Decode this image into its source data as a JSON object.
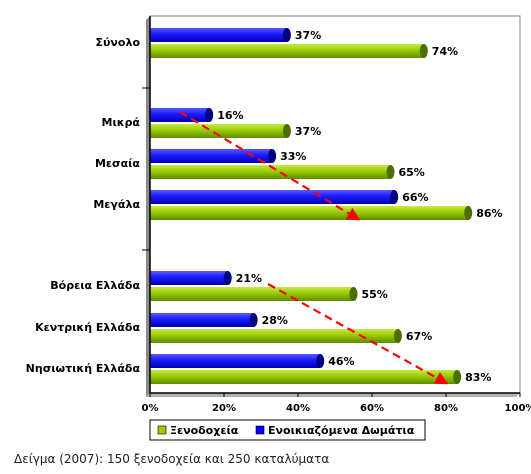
{
  "chart_data": {
    "type": "bar",
    "orientation": "horizontal",
    "categories": [
      "Σύνολο",
      "Μικρά",
      "Μεσαία",
      "Μεγάλα",
      "Βόρεια Ελλάδα",
      "Κεντρική Ελλάδα",
      "Νησιωτική Ελλάδα"
    ],
    "groups": [
      [
        0
      ],
      [
        1,
        2,
        3
      ],
      [
        4,
        5,
        6
      ]
    ],
    "series": [
      {
        "name": "Ενοικιαζόμενα Δωμάτια",
        "color": "#0000ff",
        "values": [
          37,
          16,
          33,
          66,
          21,
          28,
          46
        ]
      },
      {
        "name": "Ξενοδοχεία",
        "color": "#99cc00",
        "values": [
          74,
          37,
          65,
          86,
          55,
          67,
          83
        ]
      }
    ],
    "value_labels": [
      [
        "37%",
        "16%",
        "33%",
        "66%",
        "21%",
        "28%",
        "46%"
      ],
      [
        "74%",
        "37%",
        "65%",
        "86%",
        "55%",
        "67%",
        "83%"
      ]
    ],
    "xlim": [
      0,
      100
    ],
    "xticks": [
      "0%",
      "20%",
      "40%",
      "60%",
      "80%",
      "100%"
    ],
    "legend": {
      "position": "bottom",
      "entries": [
        "Ξενοδοχεία",
        "Ενοικιαζόμενα Δωμάτια"
      ]
    },
    "trend_arrows": {
      "color": "#ff0000",
      "style": "dashed"
    },
    "grid": false
  },
  "footnote": "Δείγμα (2007): 150 ξενοδοχεία και 250 καταλύματα"
}
